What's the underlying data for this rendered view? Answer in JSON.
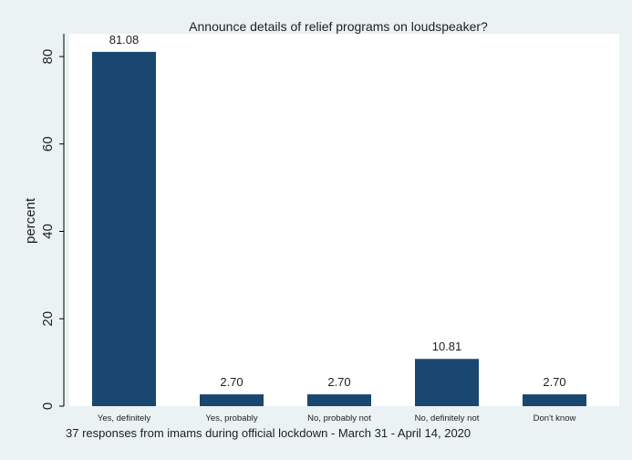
{
  "chart_data": {
    "type": "bar",
    "title": "Announce details of relief programs on loudspeaker?",
    "ylabel": "percent",
    "xlabel": "",
    "note": "37 responses from imams during official lockdown - March 31 - April 14, 2020",
    "categories": [
      "Yes, definitely",
      "Yes, probably",
      "No, probably not",
      "No, definitely not",
      "Don't know"
    ],
    "values": [
      81.08,
      2.7,
      2.7,
      10.81,
      2.7
    ],
    "value_labels": [
      "81.08",
      "2.70",
      "2.70",
      "10.81",
      "2.70"
    ],
    "ylim": [
      0,
      85
    ],
    "yticks": [
      0,
      20,
      40,
      60,
      80
    ],
    "ytick_labels": [
      "0",
      "20",
      "40",
      "60",
      "80"
    ],
    "grid": false,
    "legend": "none",
    "colors": {
      "bar": "#1a476f",
      "outer_background": "#eaf2f3",
      "plot_background": "#ffffff",
      "text": "#1f1f1f"
    }
  }
}
